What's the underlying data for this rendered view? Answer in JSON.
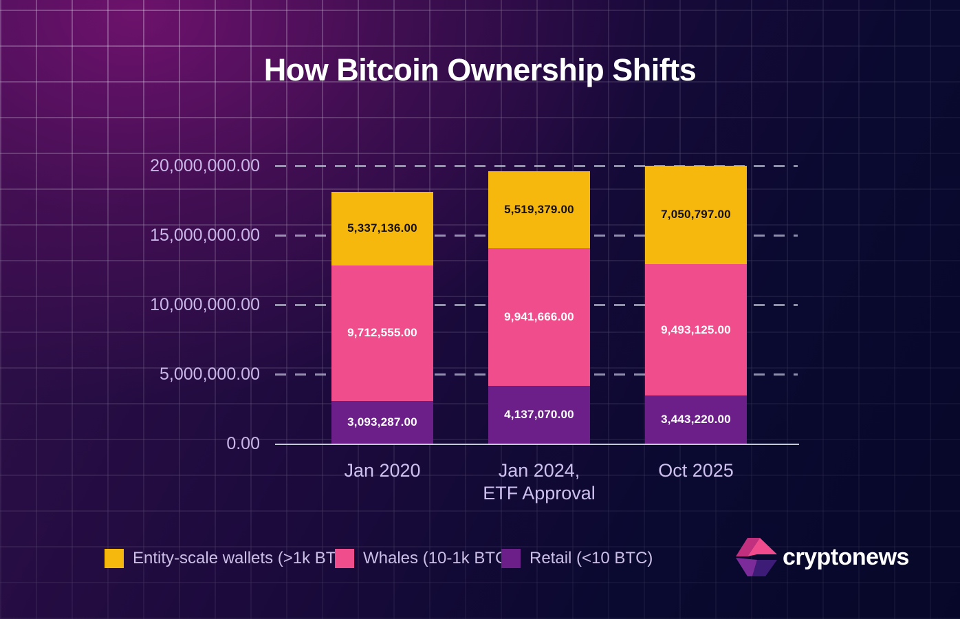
{
  "title": "How Bitcoin Ownership Shifts",
  "chart_data": {
    "type": "bar",
    "subtype": "stacked",
    "title": "How Bitcoin Ownership Shifts",
    "categories": [
      "Jan 2020",
      "Jan 2024, ETF Approval",
      "Oct 2025"
    ],
    "category_lines": [
      [
        "Jan 2020"
      ],
      [
        "Jan 2024,",
        "ETF Approval"
      ],
      [
        "Oct 2025"
      ]
    ],
    "series": [
      {
        "id": "retail",
        "name": "Retail (<10 BTC)",
        "color": "#6C1F88",
        "label_color": "#ffffff",
        "values": [
          3093287,
          4137070,
          3443220
        ],
        "labels": [
          "3,093,287.00",
          "4,137,070.00",
          "3,443,220.00"
        ]
      },
      {
        "id": "whales",
        "name": "Whales (10-1k BTC)",
        "color": "#EF4D8C",
        "label_color": "#ffffff",
        "values": [
          9712555,
          9941666,
          9493125
        ],
        "labels": [
          "9,712,555.00",
          "9,941,666.00",
          "9,493,125.00"
        ]
      },
      {
        "id": "entity",
        "name": "Entity-scale wallets (>1k BTC)",
        "color": "#F6B80D",
        "label_color": "#15111f",
        "values": [
          5337136,
          5519379,
          7050797
        ],
        "labels": [
          "5,337,136.00",
          "5,519,379.00",
          "7,050,797.00"
        ]
      }
    ],
    "y_ticks": [
      "0.00",
      "5,000,000.00",
      "10,000,000.00",
      "15,000,000.00",
      "20,000,000.00"
    ],
    "ymax": 20000000,
    "ylim": [
      0,
      20000000
    ],
    "grid": "dashed horizontal",
    "legend_position": "bottom-left"
  },
  "legend": {
    "items": [
      {
        "label": "Entity-scale wallets (>1k BTC)",
        "color": "#F6B80D"
      },
      {
        "label": "Whales (10-1k BTC)",
        "color": "#EF4D8C"
      },
      {
        "label": "Retail (<10 BTC)",
        "color": "#6C1F88"
      }
    ]
  },
  "brand": {
    "name": "cryptonews",
    "icon_colors": [
      "#C1307F",
      "#EF4B8D",
      "#7C2B9B",
      "#3D1C77"
    ]
  },
  "colors": {
    "background_top_left": "#57115b",
    "background_dark": "#070829",
    "axis_text": "#c9b7e8",
    "axis_line": "#c3cbd6",
    "title_text": "#ffffff"
  }
}
